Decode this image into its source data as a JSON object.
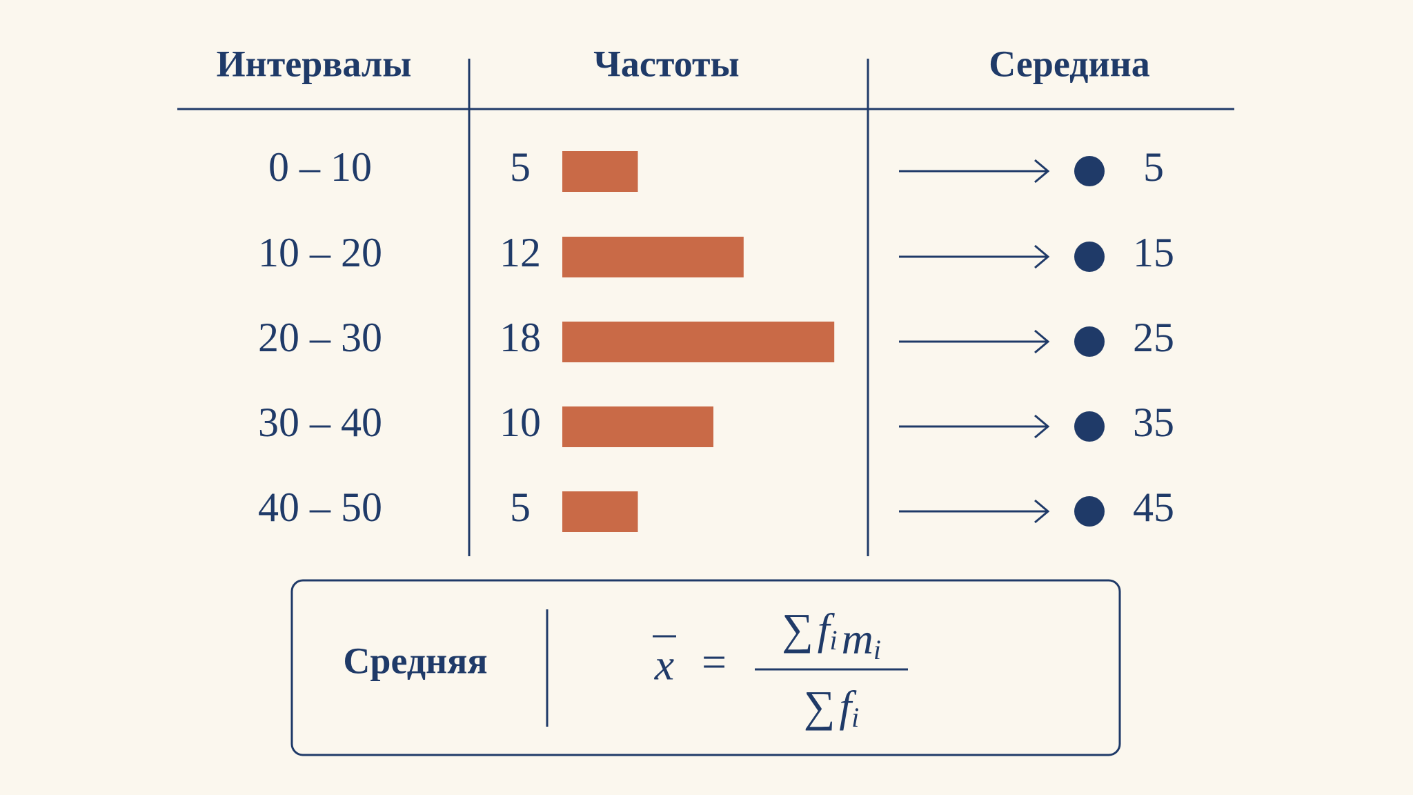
{
  "table": {
    "headers": [
      "Интервалы",
      "Частоты",
      "Середина"
    ],
    "rows": [
      {
        "interval": "0 – 10",
        "frequency": 5,
        "midpoint": 5
      },
      {
        "interval": "10 – 20",
        "frequency": 12,
        "midpoint": 15
      },
      {
        "interval": "20 – 30",
        "frequency": 18,
        "midpoint": 25
      },
      {
        "interval": "30 – 40",
        "frequency": 10,
        "midpoint": 35
      },
      {
        "interval": "40 – 50",
        "frequency": 5,
        "midpoint": 45
      }
    ]
  },
  "formula": {
    "label": "Средняя",
    "lhs": "x",
    "equals": "=",
    "numerator": {
      "sum": "∑",
      "terms": [
        {
          "base": "f",
          "sub": "i"
        },
        {
          "base": "m",
          "sub": "i"
        }
      ]
    },
    "denominator": {
      "sum": "∑",
      "terms": [
        {
          "base": "f",
          "sub": "i"
        }
      ]
    }
  }
}
